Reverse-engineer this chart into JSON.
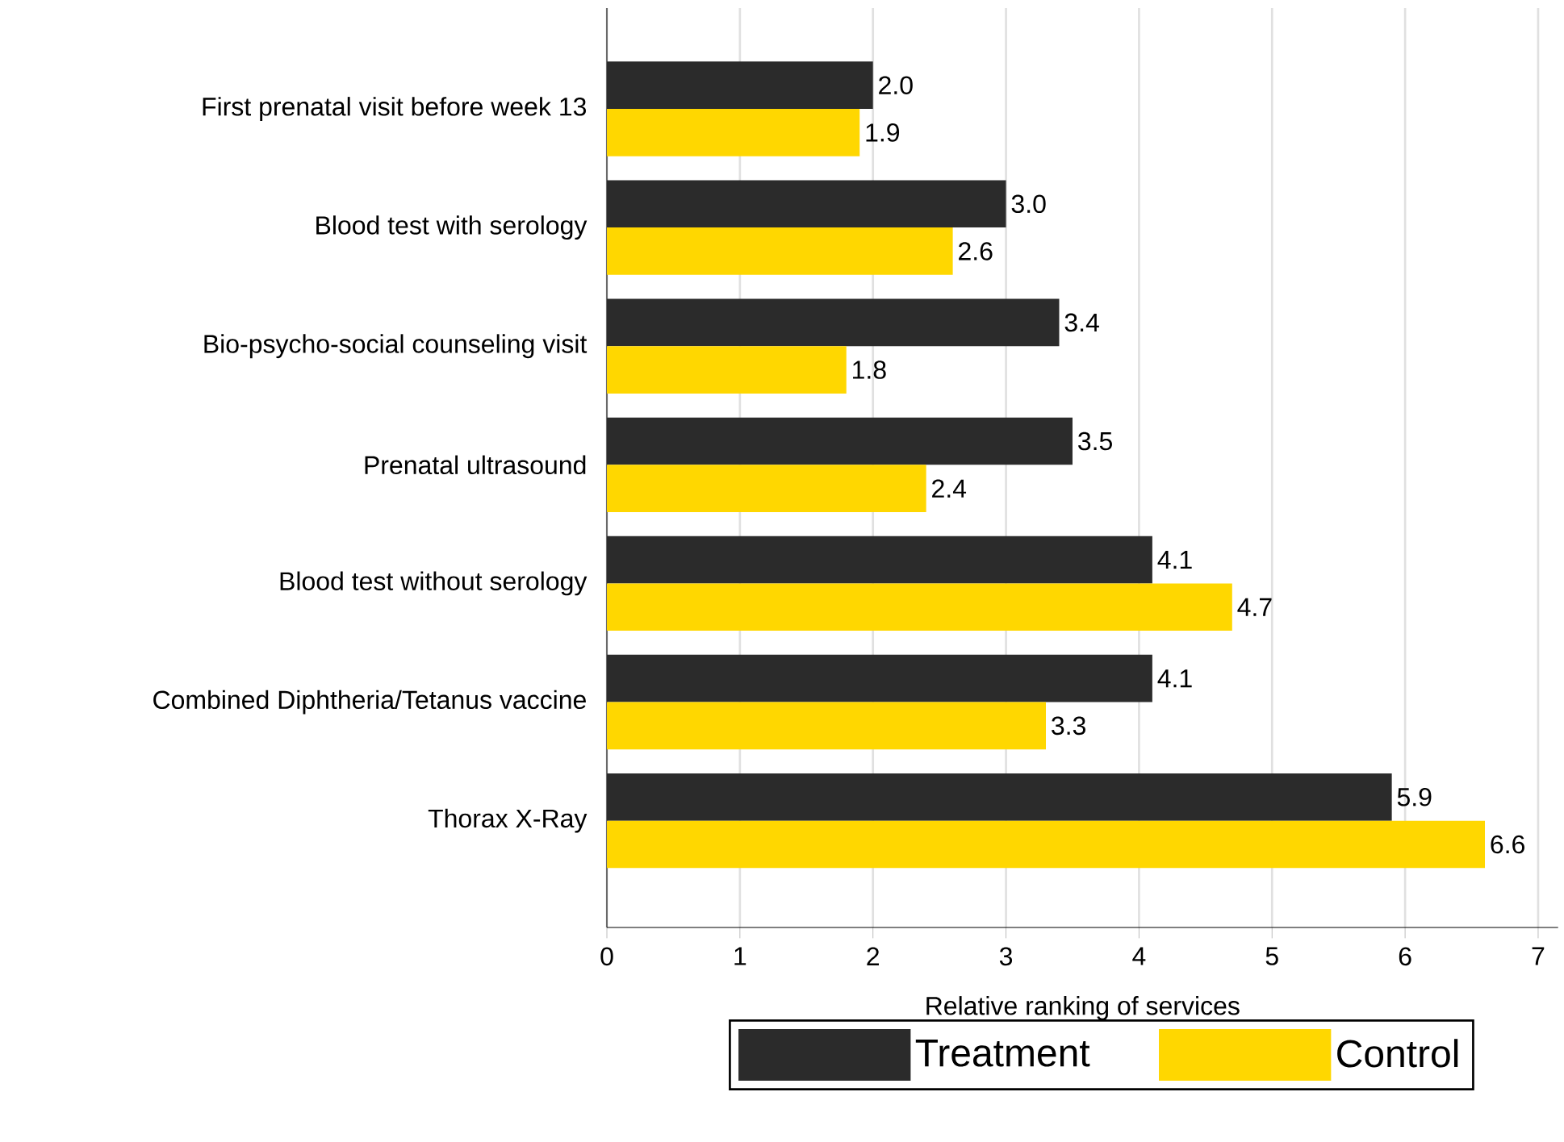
{
  "chart_data": {
    "type": "bar",
    "orientation": "horizontal",
    "xlabel": "Relative ranking of services",
    "categories": [
      "First prenatal visit before week 13",
      "Blood test with serology",
      "Bio-psycho-social counseling visit",
      "Prenatal ultrasound",
      "Blood test without serology",
      "Combined Diphtheria/Tetanus vaccine",
      "Thorax X-Ray"
    ],
    "series": [
      {
        "name": "Treatment",
        "color": "#2b2b2b",
        "values": [
          2.0,
          3.0,
          3.4,
          3.5,
          4.1,
          4.1,
          5.9
        ],
        "value_labels": [
          "2.0",
          "3.0",
          "3.4",
          "3.5",
          "4.1",
          "4.1",
          "5.9"
        ]
      },
      {
        "name": "Control",
        "color": "#ffd700",
        "values": [
          1.9,
          2.6,
          1.8,
          2.4,
          4.7,
          3.3,
          6.6
        ],
        "value_labels": [
          "1.9",
          "2.6",
          "1.8",
          "2.4",
          "4.7",
          "3.3",
          "6.6"
        ]
      }
    ],
    "xlim": [
      0,
      7.15
    ],
    "xticks": [
      0,
      1,
      2,
      3,
      4,
      5,
      6,
      7
    ],
    "grid": "x",
    "legend": "bottom"
  }
}
